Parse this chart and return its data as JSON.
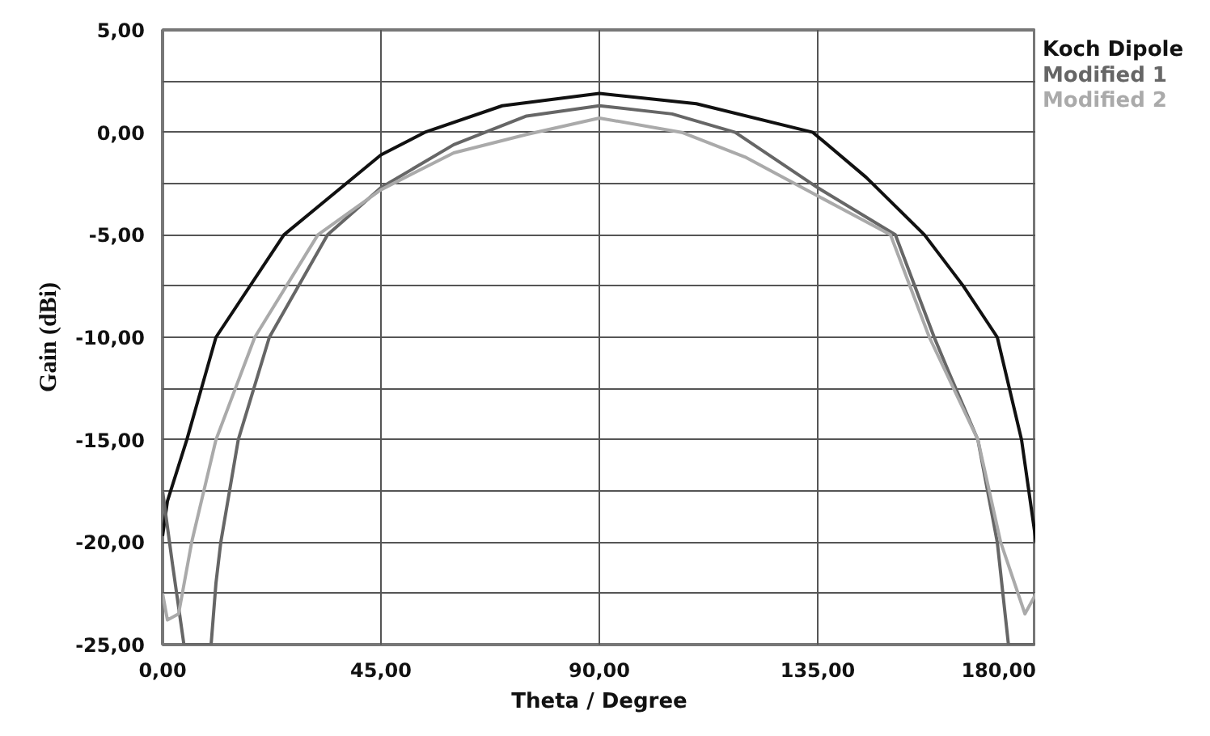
{
  "chart_data": {
    "type": "line",
    "xlabel": "Theta / Degree",
    "ylabel": "Gain (dBi)",
    "xlim": [
      0,
      180
    ],
    "ylim": [
      -25,
      5
    ],
    "xticks": [
      {
        "value": 0,
        "label": "0,00"
      },
      {
        "value": 45,
        "label": "45,00"
      },
      {
        "value": 90,
        "label": "90,00"
      },
      {
        "value": 135,
        "label": "135,00"
      },
      {
        "value": 180,
        "label": "180,00"
      }
    ],
    "yticks": [
      {
        "value": -25,
        "label": "-25,00"
      },
      {
        "value": -22.5,
        "label": null
      },
      {
        "value": -20,
        "label": "-20,00"
      },
      {
        "value": -17.5,
        "label": null
      },
      {
        "value": -15,
        "label": "-15,00"
      },
      {
        "value": -12.5,
        "label": null
      },
      {
        "value": -10,
        "label": "-10,00"
      },
      {
        "value": -7.5,
        "label": null
      },
      {
        "value": -5,
        "label": "-5,00"
      },
      {
        "value": -2.5,
        "label": null
      },
      {
        "value": 0,
        "label": "0,00"
      },
      {
        "value": 2.5,
        "label": null
      },
      {
        "value": 5,
        "label": "5,00"
      }
    ],
    "grid": true,
    "marker": "none",
    "line_style": "solid",
    "series": [
      {
        "name": "Koch Dipole",
        "color": "#111111",
        "x": [
          0,
          1,
          5,
          11,
          25,
          45,
          54,
          70,
          90,
          110,
          134,
          145,
          157,
          165,
          172,
          177,
          180
        ],
        "values": [
          -19.7,
          -18,
          -15,
          -10,
          -5,
          -1.1,
          0,
          1.3,
          1.9,
          1.4,
          0,
          -2.2,
          -5,
          -7.5,
          -10,
          -15,
          -20
        ]
      },
      {
        "name": "Modified 1",
        "color": "#666666",
        "x": [
          0,
          2,
          4.4,
          10,
          11,
          12,
          15.6,
          22,
          34,
          45,
          60,
          75,
          90,
          105,
          118,
          135,
          151,
          159,
          162,
          168,
          172,
          174.3,
          180
        ],
        "values": [
          -17.5,
          -21,
          -25,
          -25,
          -22,
          -20,
          -15,
          -10,
          -5,
          -2.7,
          -0.6,
          0.8,
          1.3,
          0.9,
          0,
          -2.7,
          -5,
          -10,
          -11.7,
          -15,
          -20,
          -25,
          -25
        ]
      },
      {
        "name": "Modified 2",
        "color": "#aaaaaa",
        "x": [
          0,
          1,
          3.3,
          6,
          11,
          19,
          32,
          45,
          60,
          75,
          90,
          107,
          120,
          135,
          150,
          158,
          168,
          172.7,
          177.7,
          180
        ],
        "values": [
          -22.5,
          -23.8,
          -23.5,
          -20,
          -15,
          -10,
          -5,
          -2.8,
          -1,
          -0.1,
          0.7,
          0,
          -1.2,
          -3.1,
          -5,
          -10,
          -15,
          -20,
          -23.5,
          -22.5
        ]
      }
    ]
  }
}
